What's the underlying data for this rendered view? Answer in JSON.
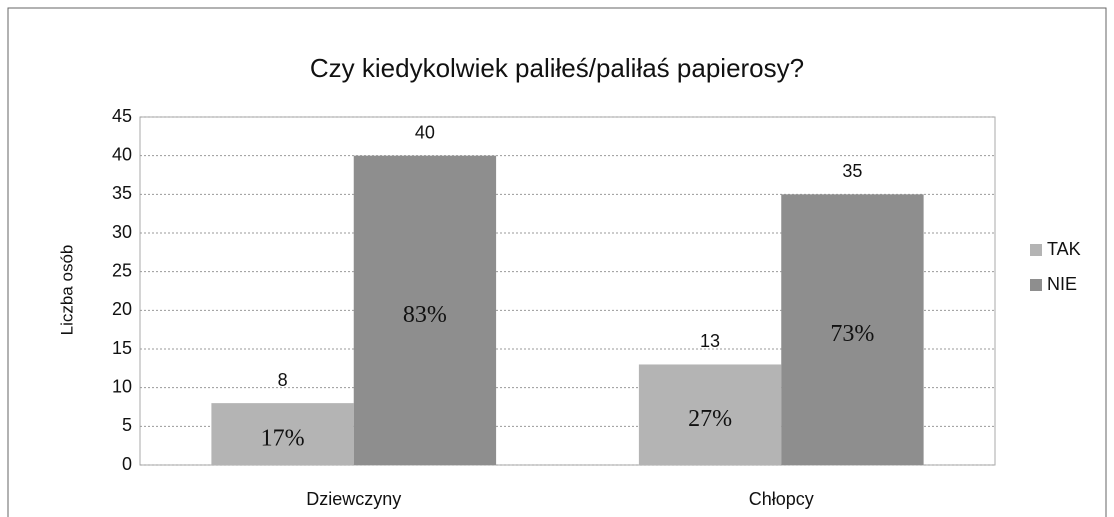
{
  "chart_data": {
    "type": "bar",
    "title": "Czy kiedykolwiek paliłeś/paliłaś papierosy?",
    "y_label": "Liczba osób",
    "categories": [
      "Dziewczyny",
      "Chłopcy"
    ],
    "series": [
      {
        "name": "TAK",
        "color": "#b4b4b4",
        "values": [
          8,
          13
        ],
        "percent_labels": [
          "17%",
          "27%"
        ]
      },
      {
        "name": "NIE",
        "color": "#8e8e8e",
        "values": [
          40,
          35
        ],
        "percent_labels": [
          "83%",
          "73%"
        ]
      }
    ],
    "ylim": [
      0,
      45
    ],
    "yticks": [
      0,
      5,
      10,
      15,
      20,
      25,
      30,
      35,
      40,
      45
    ],
    "grid": true,
    "legend": "right"
  }
}
